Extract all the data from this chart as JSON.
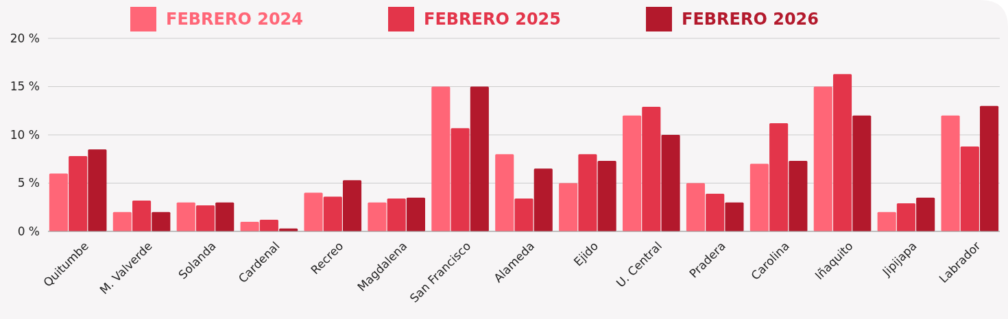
{
  "chart_data": {
    "type": "bar",
    "categories": [
      "Quitumbe",
      "M. Valverde",
      "Solanda",
      "Cardenal",
      "Recreo",
      "Magdalena",
      "San Francisco",
      "Alameda",
      "Ejido",
      "U. Central",
      "Pradera",
      "Carolina",
      "Iñaquito",
      "Jipijapa",
      "Labrador"
    ],
    "series": [
      {
        "name": "FEBRERO 2024",
        "color": "#ff6677",
        "values": [
          6,
          2,
          3,
          1,
          4,
          3,
          15,
          8,
          5,
          12,
          5,
          7,
          15,
          2,
          12
        ]
      },
      {
        "name": "FEBRERO 2025",
        "color": "#e3354a",
        "values": [
          7.8,
          3.2,
          2.7,
          1.2,
          3.6,
          3.4,
          10.7,
          3.4,
          8,
          12.9,
          3.9,
          11.2,
          16.3,
          2.9,
          8.8
        ]
      },
      {
        "name": "FEBRERO 2026",
        "color": "#b3192c",
        "values": [
          8.5,
          2,
          3,
          0.3,
          5.3,
          3.5,
          15,
          6.5,
          7.3,
          10,
          3,
          7.3,
          12,
          3.5,
          13
        ]
      }
    ],
    "ylim": [
      0,
      20
    ],
    "yticks": [
      {
        "value": 0,
        "label": "0 %"
      },
      {
        "value": 5,
        "label": "5 %"
      },
      {
        "value": 10,
        "label": "10 %"
      },
      {
        "value": 15,
        "label": "15 %"
      },
      {
        "value": 20,
        "label": "20 %"
      }
    ],
    "grid": "y",
    "legend": "top"
  }
}
